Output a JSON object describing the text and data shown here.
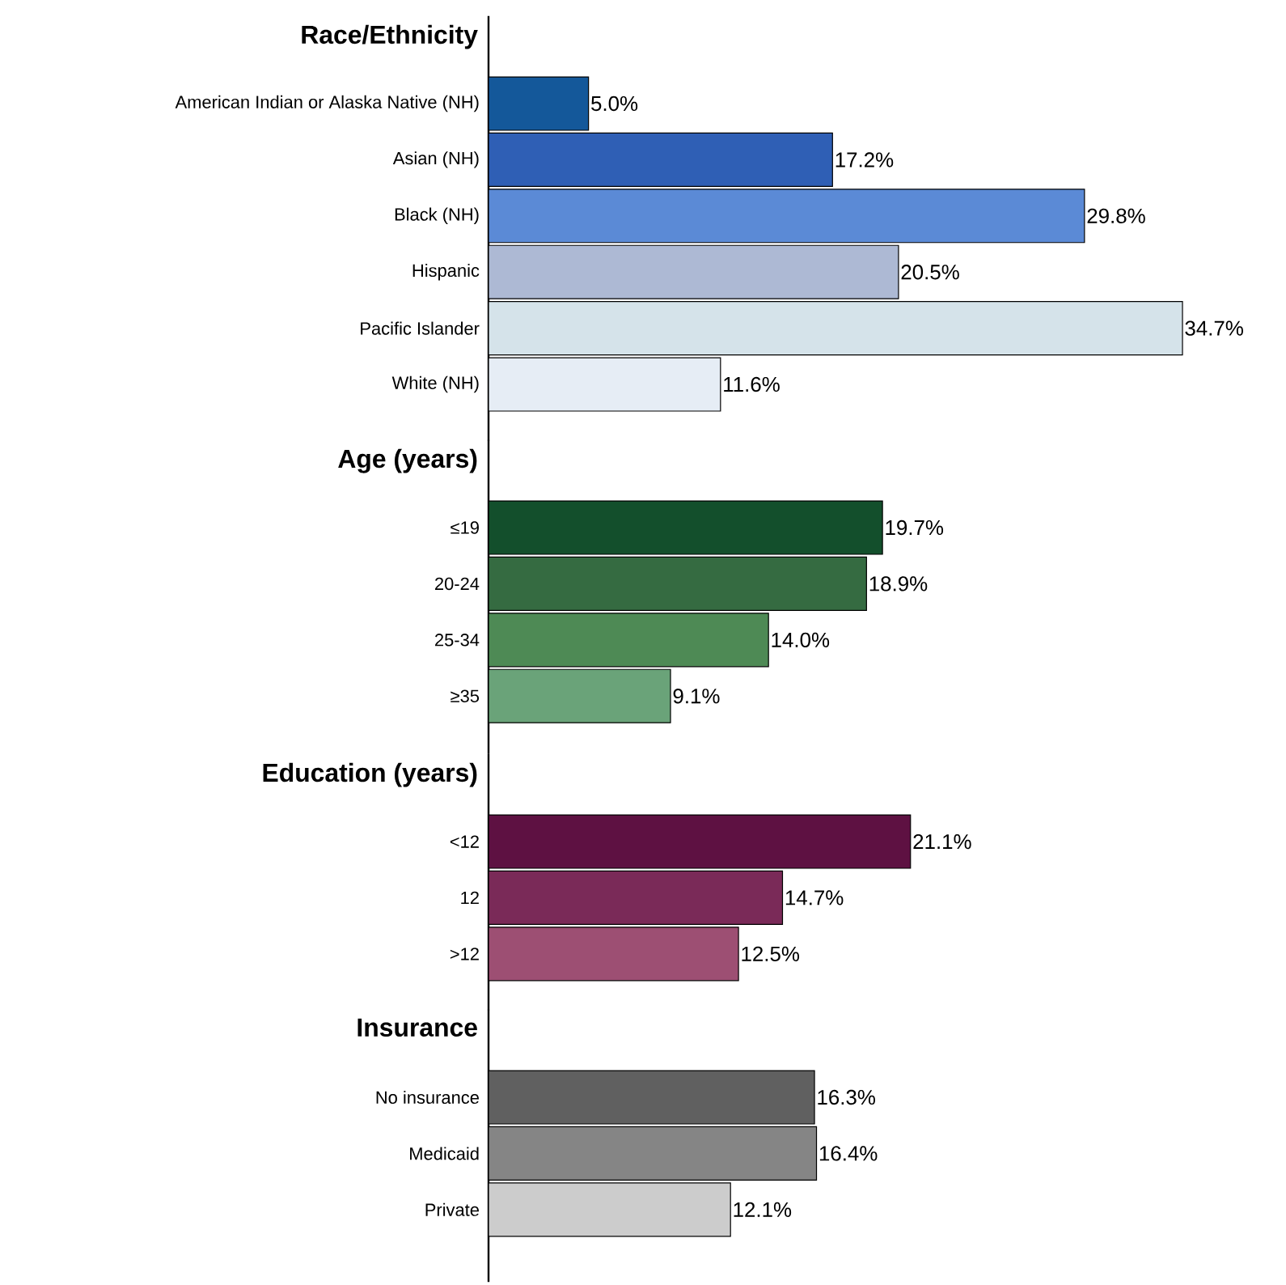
{
  "chart_data": [
    {
      "type": "bar",
      "orientation": "horizontal",
      "title": "Race/Ethnicity",
      "categories": [
        "American Indian or Alaska Native (NH)",
        "Asian (NH)",
        "Black (NH)",
        "Hispanic",
        "Pacific Islander",
        "White (NH)"
      ],
      "values": [
        5.0,
        17.2,
        29.8,
        20.5,
        34.7,
        11.6
      ],
      "value_labels": [
        "5.0%",
        "17.2%",
        "29.8%",
        "20.5%",
        "34.7%",
        "11.6%"
      ],
      "colors": [
        "#14589a",
        "#2f5fb5",
        "#5b8ad6",
        "#adb9d4",
        "#d5e3ea",
        "#e6edf5"
      ]
    },
    {
      "type": "bar",
      "orientation": "horizontal",
      "title": "Age (years)",
      "categories": [
        "≤19",
        "20-24",
        "25-34",
        "≥35"
      ],
      "values": [
        19.7,
        18.9,
        14.0,
        9.1
      ],
      "value_labels": [
        "19.7%",
        "18.9%",
        "14.0%",
        "9.1%"
      ],
      "colors": [
        "#134f2c",
        "#356b41",
        "#4e8a55",
        "#6aa379"
      ]
    },
    {
      "type": "bar",
      "orientation": "horizontal",
      "title": "Education (years)",
      "categories": [
        "<12",
        "12",
        ">12"
      ],
      "values": [
        21.1,
        14.7,
        12.5
      ],
      "value_labels": [
        "21.1%",
        "14.7%",
        "12.5%"
      ],
      "colors": [
        "#5e1142",
        "#7a2a58",
        "#9d4f73"
      ]
    },
    {
      "type": "bar",
      "orientation": "horizontal",
      "title": "Insurance",
      "categories": [
        "No insurance",
        "Medicaid",
        "Private"
      ],
      "values": [
        16.3,
        16.4,
        12.1
      ],
      "value_labels": [
        "16.3%",
        "16.4%",
        "12.1%"
      ],
      "colors": [
        "#606060",
        "#858585",
        "#cccccc"
      ]
    }
  ]
}
